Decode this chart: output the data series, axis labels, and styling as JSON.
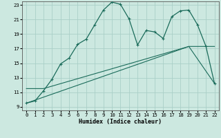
{
  "xlabel": "Humidex (Indice chaleur)",
  "bg_color": "#cce8e0",
  "grid_color": "#aacfc8",
  "line_color": "#1a6b5a",
  "xlim": [
    -0.5,
    22.5
  ],
  "ylim": [
    8.5,
    23.5
  ],
  "xticks": [
    0,
    1,
    2,
    3,
    4,
    5,
    6,
    7,
    8,
    9,
    10,
    11,
    12,
    13,
    14,
    15,
    16,
    17,
    18,
    19,
    20,
    21,
    22
  ],
  "yticks": [
    9,
    11,
    13,
    15,
    17,
    19,
    21,
    23
  ],
  "series1_x": [
    0,
    1,
    2,
    3,
    4,
    5,
    6,
    7,
    8,
    9,
    10,
    11,
    12,
    13,
    14,
    15,
    16,
    17,
    18,
    19,
    20,
    21,
    22
  ],
  "series1_y": [
    9.5,
    9.8,
    11.2,
    12.8,
    14.9,
    15.7,
    17.6,
    18.3,
    20.3,
    22.3,
    23.4,
    23.1,
    21.1,
    17.5,
    19.5,
    19.3,
    18.4,
    21.4,
    22.2,
    22.3,
    20.3,
    17.3,
    12.2
  ],
  "line2_x": [
    0,
    2,
    19,
    22
  ],
  "line2_y": [
    11.5,
    11.5,
    17.3,
    17.3
  ],
  "line3_x": [
    0,
    19,
    22
  ],
  "line3_y": [
    9.5,
    17.3,
    12.2
  ]
}
